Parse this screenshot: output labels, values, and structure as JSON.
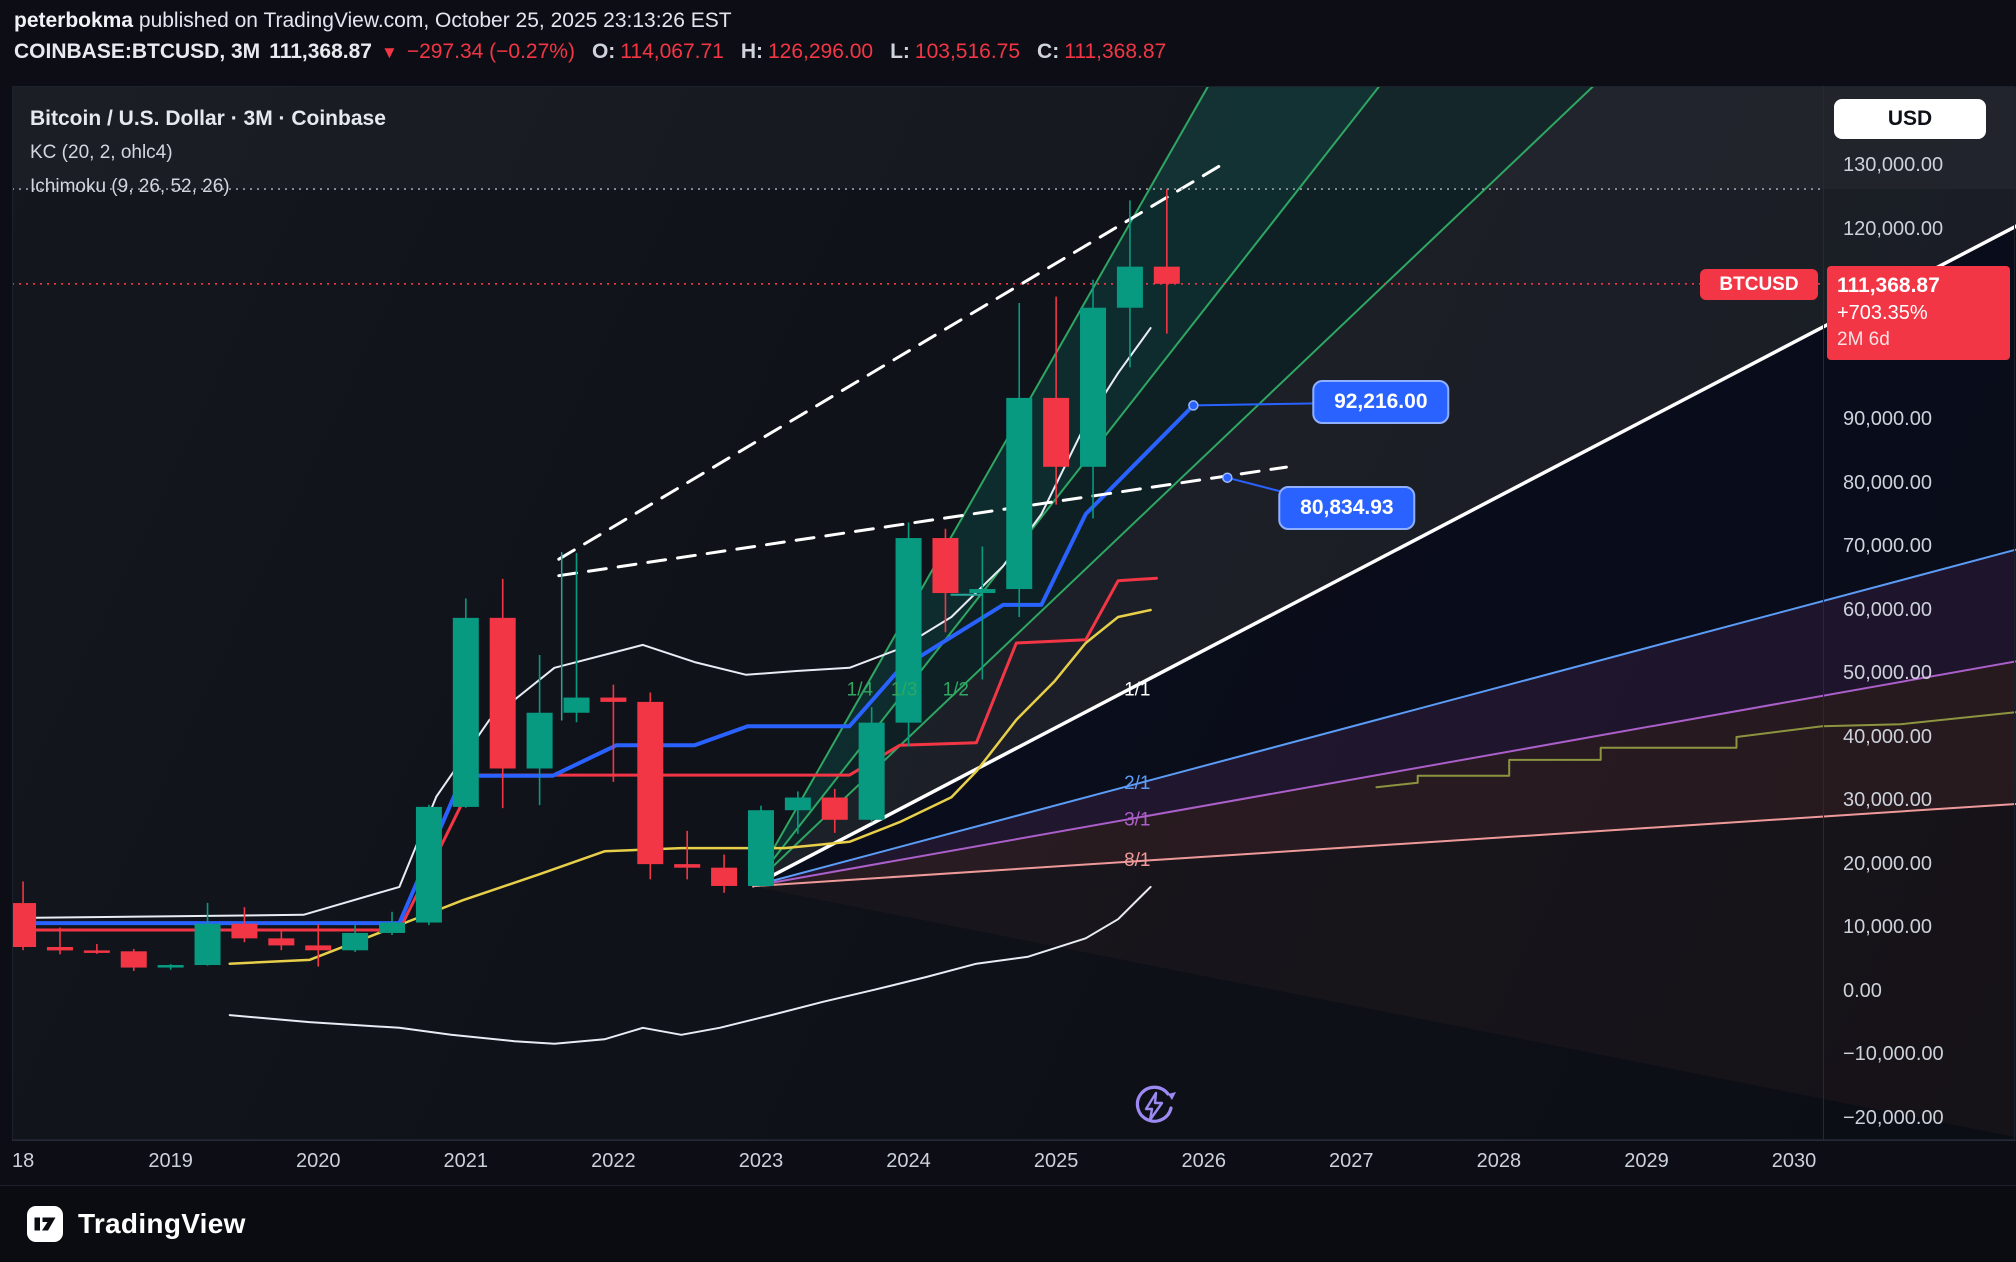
{
  "header": {
    "author": "peterbokma",
    "published": "published on TradingView.com, October 25, 2025 23:13:26 EST",
    "symbol": "COINBASE:BTCUSD, 3M",
    "last": "111,368.87",
    "down_icon": "▼",
    "change": "−297.34 (−0.27%)",
    "o_label": "O:",
    "o_value": "114,067.71",
    "h_label": "H:",
    "h_value": "126,296.00",
    "l_label": "L:",
    "l_value": "103,516.75",
    "c_label": "C:",
    "c_value": "111,368.87"
  },
  "legend": {
    "title": "Bitcoin / U.S. Dollar · 3M · Coinbase",
    "indicator_kc": "KC (20, 2, ohlc4)",
    "indicator_ichimoku": "Ichimoku (9, 26, 52, 26)"
  },
  "price_scale": {
    "currency": "USD",
    "symbol_pill": "BTCUSD",
    "badge": {
      "price": "111,368.87",
      "change_pct": "+703.35%",
      "countdown": "2M 6d"
    },
    "labels": [
      {
        "text": "130,000.00",
        "price": 130000
      },
      {
        "text": "120,000.00",
        "price": 120000
      },
      {
        "text": "90,000.00",
        "price": 90000
      },
      {
        "text": "80,000.00",
        "price": 80000
      },
      {
        "text": "70,000.00",
        "price": 70000
      },
      {
        "text": "60,000.00",
        "price": 60000
      },
      {
        "text": "50,000.00",
        "price": 50000
      },
      {
        "text": "40,000.00",
        "price": 40000
      },
      {
        "text": "30,000.00",
        "price": 30000
      },
      {
        "text": "20,000.00",
        "price": 20000
      },
      {
        "text": "10,000.00",
        "price": 10000
      },
      {
        "text": "0.00",
        "price": 0
      },
      {
        "text": "−10,000.00",
        "price": -10000
      },
      {
        "text": "−20,000.00",
        "price": -20000
      }
    ]
  },
  "time_scale": {
    "labels": [
      {
        "text": "18",
        "t": 2018
      },
      {
        "text": "2019",
        "t": 2019
      },
      {
        "text": "2020",
        "t": 2020
      },
      {
        "text": "2021",
        "t": 2021
      },
      {
        "text": "2022",
        "t": 2022
      },
      {
        "text": "2023",
        "t": 2023
      },
      {
        "text": "2024",
        "t": 2024
      },
      {
        "text": "2025",
        "t": 2025
      },
      {
        "text": "2026",
        "t": 2026
      },
      {
        "text": "2027",
        "t": 2027
      },
      {
        "text": "2028",
        "t": 2028
      },
      {
        "text": "2029",
        "t": 2029
      },
      {
        "text": "2030",
        "t": 2030
      }
    ]
  },
  "footer": {
    "brand": "TradingView"
  },
  "chart_data": {
    "type": "candlestick",
    "symbol": "COINBASE:BTCUSD",
    "interval": "3M",
    "title": "Bitcoin / U.S. Dollar · 3M · Coinbase",
    "axis": {
      "xlim": [
        2017.925,
        2031.504
      ],
      "ylim": [
        -23465,
        142362
      ],
      "x_unit": "year",
      "y_unit": "USD"
    },
    "colors": {
      "up": "#089981",
      "down": "#f23645",
      "accent": "#2962ff"
    },
    "hlines": [
      {
        "name": "last-price-line",
        "price": 111368.87,
        "color": "#f23645"
      },
      {
        "name": "high-line",
        "price": 126296.0,
        "color": "#9aa0ab"
      }
    ],
    "candles_columns": [
      "t",
      "open",
      "high",
      "low",
      "close"
    ],
    "candles": [
      [
        2018.0,
        13850,
        17250,
        6430,
        6930
      ],
      [
        2018.25,
        6930,
        9990,
        5780,
        6390
      ],
      [
        2018.5,
        6390,
        7400,
        5850,
        6250
      ],
      [
        2018.75,
        6250,
        6620,
        3150,
        3690
      ],
      [
        2019.0,
        3690,
        4240,
        3350,
        4090
      ],
      [
        2019.25,
        4090,
        13880,
        3990,
        10590
      ],
      [
        2019.5,
        10590,
        13200,
        7680,
        8290
      ],
      [
        2019.75,
        8290,
        9590,
        6430,
        7180
      ],
      [
        2020.0,
        7180,
        10500,
        3850,
        6410
      ],
      [
        2020.25,
        6410,
        10380,
        6150,
        9140
      ],
      [
        2020.5,
        9140,
        12470,
        8820,
        10780
      ],
      [
        2020.75,
        10780,
        29320,
        10370,
        28990
      ],
      [
        2021.0,
        28990,
        61840,
        28850,
        58760
      ],
      [
        2021.25,
        58760,
        64900,
        28800,
        35040
      ],
      [
        2021.5,
        35040,
        52920,
        29280,
        43820
      ],
      [
        2021.75,
        43820,
        69000,
        42330,
        46210
      ],
      [
        2022.0,
        46210,
        48240,
        32930,
        45530
      ],
      [
        2022.25,
        45530,
        47010,
        17590,
        19980
      ],
      [
        2022.5,
        19980,
        25210,
        17580,
        19420
      ],
      [
        2022.75,
        19420,
        21480,
        15460,
        16540
      ],
      [
        2023.0,
        16540,
        29190,
        16490,
        28470
      ],
      [
        2023.25,
        28470,
        31430,
        24750,
        30470
      ],
      [
        2023.5,
        30470,
        31820,
        24900,
        26960
      ],
      [
        2023.75,
        26960,
        44700,
        26530,
        42260
      ],
      [
        2024.0,
        42260,
        73800,
        38500,
        71330
      ],
      [
        2024.25,
        71330,
        72790,
        56500,
        62670
      ],
      [
        2024.5,
        62670,
        70000,
        49050,
        63300
      ],
      [
        2024.75,
        63300,
        108350,
        58890,
        93400
      ],
      [
        2025.0,
        93400,
        109350,
        76600,
        82550
      ],
      [
        2025.25,
        82550,
        112000,
        74420,
        107600
      ],
      [
        2025.5,
        107600,
        124500,
        98200,
        114070
      ],
      [
        2025.75,
        114067.71,
        126296,
        103516.75,
        111368.87
      ]
    ],
    "gann_fan": {
      "origin": [
        2022.94,
        16500
      ],
      "rays": [
        {
          "label": "1/4",
          "color": "#2fa662",
          "width": 2,
          "end": [
            2026.03,
            142500
          ],
          "label_at": [
            2023.67,
            46500
          ]
        },
        {
          "label": "1/3",
          "color": "#2fa662",
          "width": 2,
          "end": [
            2027.19,
            142500
          ],
          "label_at": [
            2023.97,
            46500
          ]
        },
        {
          "label": "1/2",
          "color": "#2fa662",
          "width": 2,
          "end": [
            2028.64,
            142500
          ],
          "label_at": [
            2024.32,
            46500
          ]
        },
        {
          "label": "1/1",
          "color": "#ffffff",
          "width": 3.5,
          "end": [
            2031.6,
            121600
          ],
          "label_at": [
            2025.55,
            46500
          ]
        },
        {
          "label": "2/1",
          "color": "#5b9cf6",
          "width": 2,
          "end": [
            2031.6,
            70100
          ],
          "label_at": [
            2025.55,
            31800
          ]
        },
        {
          "label": "3/1",
          "color": "#ab5fc9",
          "width": 2,
          "end": [
            2031.6,
            52300
          ],
          "label_at": [
            2025.55,
            26100
          ]
        },
        {
          "label": "8/1",
          "color": "#ef9a9a",
          "width": 2,
          "end": [
            2031.6,
            29600
          ],
          "label_at": [
            2025.55,
            19700
          ]
        }
      ]
    },
    "fills": [
      {
        "name": "top-gray-strip",
        "color": "rgba(255,255,255,0.03)",
        "points": [
          [
            2017.925,
            142362
          ],
          [
            2031.504,
            142362
          ],
          [
            2031.504,
            126296
          ],
          [
            2017.925,
            126296
          ]
        ]
      },
      {
        "name": "fan-green-inner",
        "color": "rgba(8,153,129,0.20)",
        "points": [
          [
            2022.94,
            16500
          ],
          [
            2026.03,
            142500
          ],
          [
            2027.19,
            142500
          ]
        ]
      },
      {
        "name": "fan-green-outer",
        "color": "rgba(8,153,129,0.11)",
        "points": [
          [
            2022.94,
            16500
          ],
          [
            2027.19,
            142500
          ],
          [
            2028.64,
            142500
          ]
        ]
      },
      {
        "name": "fan-gray",
        "color": "rgba(165,175,190,0.09)",
        "points": [
          [
            2022.94,
            16500
          ],
          [
            2028.64,
            142500
          ],
          [
            2031.6,
            142500
          ],
          [
            2031.6,
            121600
          ]
        ]
      },
      {
        "name": "fan-dark",
        "color": "rgba(5,9,28,0.52)",
        "points": [
          [
            2022.94,
            16500
          ],
          [
            2031.6,
            121600
          ],
          [
            2031.6,
            70100
          ]
        ]
      },
      {
        "name": "fan-purple",
        "color": "rgba(150,60,190,0.13)",
        "points": [
          [
            2022.94,
            16500
          ],
          [
            2031.6,
            70100
          ],
          [
            2031.6,
            52300
          ]
        ]
      },
      {
        "name": "fan-salmon",
        "color": "rgba(205,100,90,0.13)",
        "points": [
          [
            2022.94,
            16500
          ],
          [
            2031.6,
            52300
          ],
          [
            2031.6,
            29600
          ]
        ]
      },
      {
        "name": "fan-bottom",
        "color": "rgba(205,100,90,0.05)",
        "points": [
          [
            2022.94,
            16500
          ],
          [
            2031.6,
            29600
          ],
          [
            2031.6,
            -23465
          ]
        ]
      }
    ],
    "lines": [
      {
        "name": "kc-upper",
        "color": "#e9ecf4",
        "width": 2,
        "points": [
          [
            2017.9,
            11500
          ],
          [
            2019.9,
            12000
          ],
          [
            2020.55,
            16400
          ],
          [
            2020.8,
            30600
          ],
          [
            2021.16,
            42700
          ],
          [
            2021.6,
            50900
          ],
          [
            2022.2,
            54500
          ],
          [
            2022.55,
            51800
          ],
          [
            2022.9,
            49800
          ],
          [
            2023.24,
            50400
          ],
          [
            2023.6,
            50900
          ],
          [
            2023.94,
            53900
          ],
          [
            2024.29,
            58900
          ],
          [
            2024.64,
            66900
          ],
          [
            2024.9,
            75100
          ],
          [
            2025.2,
            89300
          ],
          [
            2025.42,
            97300
          ],
          [
            2025.64,
            104400
          ]
        ]
      },
      {
        "name": "kc-lower",
        "color": "#e9ecf4",
        "width": 2,
        "points": [
          [
            2019.4,
            -3800
          ],
          [
            2019.94,
            -4900
          ],
          [
            2020.55,
            -5800
          ],
          [
            2020.9,
            -6900
          ],
          [
            2021.33,
            -7900
          ],
          [
            2021.6,
            -8300
          ],
          [
            2021.94,
            -7600
          ],
          [
            2022.2,
            -5800
          ],
          [
            2022.46,
            -6900
          ],
          [
            2022.72,
            -5800
          ],
          [
            2023.07,
            -3800
          ],
          [
            2023.42,
            -1700
          ],
          [
            2023.77,
            200
          ],
          [
            2024.12,
            2200
          ],
          [
            2024.46,
            4300
          ],
          [
            2024.81,
            5400
          ],
          [
            2025.2,
            8300
          ],
          [
            2025.42,
            11300
          ],
          [
            2025.64,
            16400
          ]
        ]
      },
      {
        "name": "senkou-b",
        "color": "#8c9440",
        "width": 2,
        "points": [
          [
            2027.17,
            32100
          ],
          [
            2027.45,
            32800
          ],
          [
            2027.45,
            33900
          ],
          [
            2028.07,
            33900
          ],
          [
            2028.07,
            36400
          ],
          [
            2028.69,
            36400
          ],
          [
            2028.69,
            38300
          ],
          [
            2029.61,
            38300
          ],
          [
            2029.61,
            40000
          ],
          [
            2030.19,
            41700
          ],
          [
            2030.72,
            42000
          ],
          [
            2031.5,
            43900
          ]
        ]
      },
      {
        "name": "ma-yellow",
        "color": "#e8cf4a",
        "width": 2.5,
        "points": [
          [
            2019.4,
            4300
          ],
          [
            2019.94,
            4900
          ],
          [
            2020.55,
            10400
          ],
          [
            2020.98,
            14300
          ],
          [
            2021.5,
            18400
          ],
          [
            2021.94,
            22000
          ],
          [
            2022.46,
            22500
          ],
          [
            2023.16,
            22500
          ],
          [
            2023.6,
            23500
          ],
          [
            2023.94,
            26600
          ],
          [
            2024.29,
            30500
          ],
          [
            2024.46,
            34600
          ],
          [
            2024.73,
            42700
          ],
          [
            2024.99,
            48800
          ],
          [
            2025.2,
            54800
          ],
          [
            2025.42,
            58900
          ],
          [
            2025.64,
            60000
          ]
        ]
      },
      {
        "name": "kijun-red",
        "color": "#f23645",
        "width": 3,
        "points": [
          [
            2017.9,
            9600
          ],
          [
            2020.55,
            9600
          ],
          [
            2021.07,
            34000
          ],
          [
            2023.6,
            34000
          ],
          [
            2023.94,
            38700
          ],
          [
            2024.46,
            39100
          ],
          [
            2024.73,
            54800
          ],
          [
            2025.2,
            55300
          ],
          [
            2025.42,
            64600
          ],
          [
            2025.68,
            65000
          ]
        ]
      },
      {
        "name": "tenkan-blue",
        "color": "#2962ff",
        "width": 4,
        "points": [
          [
            2017.9,
            10700
          ],
          [
            2020.55,
            10700
          ],
          [
            2020.98,
            33900
          ],
          [
            2021.59,
            33900
          ],
          [
            2022.02,
            38700
          ],
          [
            2022.55,
            38700
          ],
          [
            2022.91,
            41700
          ],
          [
            2023.6,
            41700
          ],
          [
            2023.94,
            50700
          ],
          [
            2024.64,
            60800
          ],
          [
            2024.9,
            60800
          ],
          [
            2025.2,
            75100
          ],
          [
            2025.93,
            92216
          ]
        ]
      },
      {
        "name": "trend-dashed-upper",
        "color": "#ffffff",
        "width": 3,
        "dash": "18 12",
        "points": [
          [
            2021.63,
            68000
          ],
          [
            2026.12,
            130100
          ]
        ]
      },
      {
        "name": "trend-dashed-lower",
        "color": "#ffffff",
        "width": 3,
        "dash": "18 12",
        "points": [
          [
            2021.63,
            65400
          ],
          [
            2026.56,
            82500
          ]
        ]
      },
      {
        "name": "vertical-teal",
        "color": "#26a69a",
        "width": 1.5,
        "points": [
          [
            2021.65,
            69000
          ],
          [
            2021.65,
            42700
          ]
        ]
      },
      {
        "name": "horizontal-teal",
        "color": "#26a69a",
        "width": 2,
        "points": [
          [
            2024.29,
            62400
          ],
          [
            2024.5,
            62400
          ]
        ]
      }
    ],
    "callouts": [
      {
        "text": "92,216.00",
        "dot": [
          2025.93,
          92216
        ],
        "pill": [
          2027.2,
          92700
        ]
      },
      {
        "text": "80,834.93",
        "dot": [
          2026.16,
          80834.93
        ],
        "pill": [
          2026.97,
          76000
        ]
      }
    ]
  }
}
